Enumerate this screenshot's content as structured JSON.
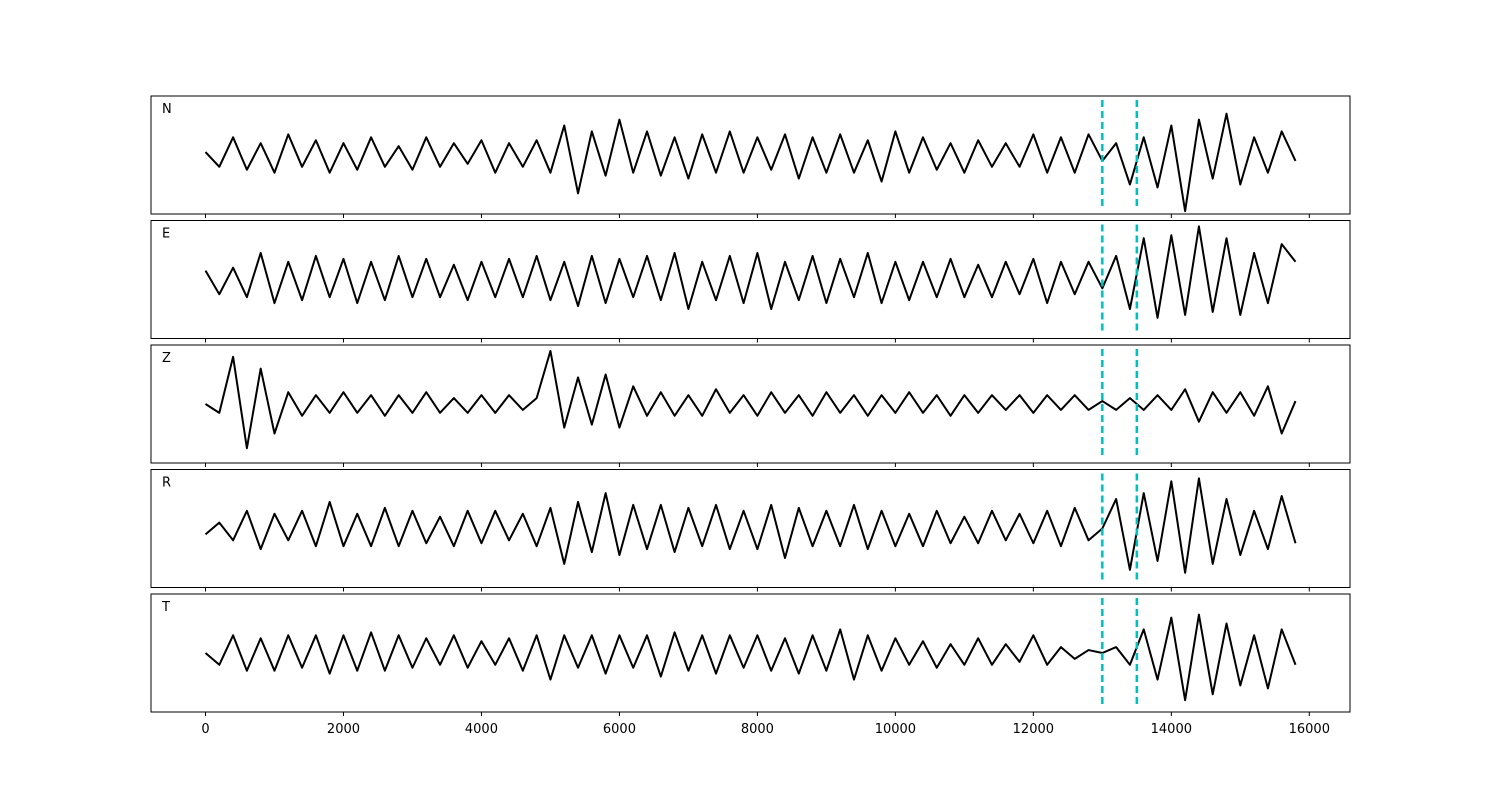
{
  "chart_data": [
    {
      "type": "line",
      "label": "N",
      "color": "#000000",
      "vline_color": "#00bfbf",
      "vlines": [
        13000,
        13500
      ],
      "xlim": [
        -790,
        16590
      ],
      "ylim": [
        -1,
        1
      ],
      "xticks": [
        0,
        2000,
        4000,
        6000,
        8000,
        10000,
        12000,
        14000,
        16000
      ],
      "x": [
        0,
        200,
        400,
        600,
        800,
        1000,
        1200,
        1400,
        1600,
        1800,
        2000,
        2200,
        2400,
        2600,
        2800,
        3000,
        3200,
        3400,
        3600,
        3800,
        4000,
        4200,
        4400,
        4600,
        4800,
        5000,
        5200,
        5400,
        5600,
        5800,
        6000,
        6200,
        6400,
        6600,
        6800,
        7000,
        7200,
        7400,
        7600,
        7800,
        8000,
        8200,
        8400,
        8600,
        8800,
        9000,
        9200,
        9400,
        9600,
        9800,
        10000,
        10200,
        10400,
        10600,
        10800,
        11000,
        11200,
        11400,
        11600,
        11800,
        12000,
        12200,
        12400,
        12600,
        12800,
        13000,
        13200,
        13400,
        13600,
        13800,
        14000,
        14200,
        14400,
        14600,
        14800,
        15000,
        15200,
        15400,
        15600,
        15800
      ],
      "values": [
        0.05,
        -0.2,
        0.3,
        -0.25,
        0.2,
        -0.3,
        0.35,
        -0.2,
        0.25,
        -0.3,
        0.2,
        -0.25,
        0.3,
        -0.2,
        0.15,
        -0.25,
        0.3,
        -0.2,
        0.2,
        -0.15,
        0.25,
        -0.3,
        0.2,
        -0.2,
        0.25,
        -0.3,
        0.5,
        -0.65,
        0.4,
        -0.35,
        0.6,
        -0.3,
        0.4,
        -0.35,
        0.3,
        -0.4,
        0.35,
        -0.3,
        0.4,
        -0.3,
        0.3,
        -0.25,
        0.35,
        -0.4,
        0.3,
        -0.3,
        0.35,
        -0.3,
        0.25,
        -0.45,
        0.4,
        -0.3,
        0.3,
        -0.25,
        0.2,
        -0.3,
        0.25,
        -0.2,
        0.2,
        -0.2,
        0.35,
        -0.3,
        0.3,
        -0.3,
        0.35,
        -0.1,
        0.2,
        -0.5,
        0.3,
        -0.55,
        0.5,
        -0.95,
        0.6,
        -0.4,
        0.7,
        -0.5,
        0.3,
        -0.3,
        0.4,
        -0.1
      ]
    },
    {
      "type": "line",
      "label": "E",
      "color": "#000000",
      "vline_color": "#00bfbf",
      "vlines": [
        13000,
        13500
      ],
      "xlim": [
        -790,
        16590
      ],
      "ylim": [
        -1,
        1
      ],
      "xticks": [
        0,
        2000,
        4000,
        6000,
        8000,
        10000,
        12000,
        14000,
        16000
      ],
      "x": [
        0,
        200,
        400,
        600,
        800,
        1000,
        1200,
        1400,
        1600,
        1800,
        2000,
        2200,
        2400,
        2600,
        2800,
        3000,
        3200,
        3400,
        3600,
        3800,
        4000,
        4200,
        4400,
        4600,
        4800,
        5000,
        5200,
        5400,
        5600,
        5800,
        6000,
        6200,
        6400,
        6600,
        6800,
        7000,
        7200,
        7400,
        7600,
        7800,
        8000,
        8200,
        8400,
        8600,
        8800,
        9000,
        9200,
        9400,
        9600,
        9800,
        10000,
        10200,
        10400,
        10600,
        10800,
        11000,
        11200,
        11400,
        11600,
        11800,
        12000,
        12200,
        12400,
        12600,
        12800,
        13000,
        13200,
        13400,
        13600,
        13800,
        14000,
        14200,
        14400,
        14600,
        14800,
        15000,
        15200,
        15400,
        15600,
        15800
      ],
      "values": [
        0.15,
        -0.25,
        0.2,
        -0.3,
        0.45,
        -0.4,
        0.3,
        -0.35,
        0.4,
        -0.3,
        0.35,
        -0.4,
        0.3,
        -0.35,
        0.4,
        -0.3,
        0.35,
        -0.3,
        0.25,
        -0.35,
        0.3,
        -0.3,
        0.35,
        -0.3,
        0.4,
        -0.35,
        0.3,
        -0.45,
        0.4,
        -0.4,
        0.35,
        -0.3,
        0.4,
        -0.35,
        0.45,
        -0.5,
        0.3,
        -0.35,
        0.4,
        -0.4,
        0.45,
        -0.5,
        0.3,
        -0.35,
        0.4,
        -0.4,
        0.35,
        -0.3,
        0.45,
        -0.4,
        0.3,
        -0.35,
        0.3,
        -0.3,
        0.35,
        -0.3,
        0.25,
        -0.3,
        0.3,
        -0.25,
        0.35,
        -0.4,
        0.3,
        -0.25,
        0.3,
        -0.15,
        0.4,
        -0.5,
        0.7,
        -0.65,
        0.75,
        -0.6,
        0.9,
        -0.55,
        0.7,
        -0.6,
        0.45,
        -0.4,
        0.6,
        0.3
      ]
    },
    {
      "type": "line",
      "label": "Z",
      "color": "#000000",
      "vline_color": "#00bfbf",
      "vlines": [
        13000,
        13500
      ],
      "xlim": [
        -790,
        16590
      ],
      "ylim": [
        -1,
        1
      ],
      "xticks": [
        0,
        2000,
        4000,
        6000,
        8000,
        10000,
        12000,
        14000,
        16000
      ],
      "x": [
        0,
        200,
        400,
        600,
        800,
        1000,
        1200,
        1400,
        1600,
        1800,
        2000,
        2200,
        2400,
        2600,
        2800,
        3000,
        3200,
        3400,
        3600,
        3800,
        4000,
        4200,
        4400,
        4600,
        4800,
        5000,
        5200,
        5400,
        5600,
        5800,
        6000,
        6200,
        6400,
        6600,
        6800,
        7000,
        7200,
        7400,
        7600,
        7800,
        8000,
        8200,
        8400,
        8600,
        8800,
        9000,
        9200,
        9400,
        9600,
        9800,
        10000,
        10200,
        10400,
        10600,
        10800,
        11000,
        11200,
        11400,
        11600,
        11800,
        12000,
        12200,
        12400,
        12600,
        12800,
        13000,
        13200,
        13400,
        13600,
        13800,
        14000,
        14200,
        14400,
        14600,
        14800,
        15000,
        15200,
        15400,
        15600,
        15800
      ],
      "values": [
        0.0,
        -0.15,
        0.8,
        -0.75,
        0.6,
        -0.5,
        0.2,
        -0.2,
        0.15,
        -0.15,
        0.2,
        -0.15,
        0.15,
        -0.2,
        0.15,
        -0.15,
        0.2,
        -0.15,
        0.1,
        -0.15,
        0.15,
        -0.15,
        0.15,
        -0.1,
        0.1,
        0.9,
        -0.4,
        0.45,
        -0.35,
        0.5,
        -0.4,
        0.3,
        -0.2,
        0.2,
        -0.2,
        0.15,
        -0.2,
        0.25,
        -0.15,
        0.15,
        -0.2,
        0.2,
        -0.15,
        0.15,
        -0.2,
        0.2,
        -0.15,
        0.15,
        -0.2,
        0.15,
        -0.15,
        0.2,
        -0.15,
        0.15,
        -0.2,
        0.15,
        -0.15,
        0.15,
        -0.1,
        0.15,
        -0.15,
        0.15,
        -0.1,
        0.15,
        -0.1,
        0.05,
        -0.1,
        0.1,
        -0.1,
        0.15,
        -0.1,
        0.25,
        -0.3,
        0.2,
        -0.15,
        0.2,
        -0.2,
        0.3,
        -0.5,
        0.05
      ]
    },
    {
      "type": "line",
      "label": "R",
      "color": "#000000",
      "vline_color": "#00bfbf",
      "vlines": [
        13000,
        13500
      ],
      "xlim": [
        -790,
        16590
      ],
      "ylim": [
        -1,
        1
      ],
      "xticks": [
        0,
        2000,
        4000,
        6000,
        8000,
        10000,
        12000,
        14000,
        16000
      ],
      "x": [
        0,
        200,
        400,
        600,
        800,
        1000,
        1200,
        1400,
        1600,
        1800,
        2000,
        2200,
        2400,
        2600,
        2800,
        3000,
        3200,
        3400,
        3600,
        3800,
        4000,
        4200,
        4400,
        4600,
        4800,
        5000,
        5200,
        5400,
        5600,
        5800,
        6000,
        6200,
        6400,
        6600,
        6800,
        7000,
        7200,
        7400,
        7600,
        7800,
        8000,
        8200,
        8400,
        8600,
        8800,
        9000,
        9200,
        9400,
        9600,
        9800,
        10000,
        10200,
        10400,
        10600,
        10800,
        11000,
        11200,
        11400,
        11600,
        11800,
        12000,
        12200,
        12400,
        12600,
        12800,
        13000,
        13200,
        13400,
        13600,
        13800,
        14000,
        14200,
        14400,
        14600,
        14800,
        15000,
        15200,
        15400,
        15600,
        15800
      ],
      "values": [
        -0.1,
        0.1,
        -0.2,
        0.3,
        -0.35,
        0.25,
        -0.2,
        0.3,
        -0.3,
        0.45,
        -0.3,
        0.25,
        -0.3,
        0.35,
        -0.3,
        0.3,
        -0.25,
        0.2,
        -0.3,
        0.3,
        -0.25,
        0.3,
        -0.2,
        0.25,
        -0.3,
        0.35,
        -0.6,
        0.45,
        -0.4,
        0.6,
        -0.45,
        0.4,
        -0.35,
        0.4,
        -0.4,
        0.35,
        -0.3,
        0.4,
        -0.35,
        0.3,
        -0.35,
        0.4,
        -0.5,
        0.35,
        -0.3,
        0.3,
        -0.3,
        0.4,
        -0.35,
        0.3,
        -0.3,
        0.25,
        -0.3,
        0.3,
        -0.25,
        0.2,
        -0.25,
        0.3,
        -0.2,
        0.25,
        -0.25,
        0.3,
        -0.3,
        0.35,
        -0.2,
        0.0,
        0.5,
        -0.7,
        0.6,
        -0.55,
        0.8,
        -0.75,
        0.85,
        -0.6,
        0.5,
        -0.45,
        0.3,
        -0.35,
        0.55,
        -0.25
      ]
    },
    {
      "type": "line",
      "label": "T",
      "color": "#000000",
      "vline_color": "#00bfbf",
      "vlines": [
        13000,
        13500
      ],
      "xlim": [
        -790,
        16590
      ],
      "ylim": [
        -1,
        1
      ],
      "xticks": [
        0,
        2000,
        4000,
        6000,
        8000,
        10000,
        12000,
        14000,
        16000
      ],
      "x": [
        0,
        200,
        400,
        600,
        800,
        1000,
        1200,
        1400,
        1600,
        1800,
        2000,
        2200,
        2400,
        2600,
        2800,
        3000,
        3200,
        3400,
        3600,
        3800,
        4000,
        4200,
        4400,
        4600,
        4800,
        5000,
        5200,
        5400,
        5600,
        5800,
        6000,
        6200,
        6400,
        6600,
        6800,
        7000,
        7200,
        7400,
        7600,
        7800,
        8000,
        8200,
        8400,
        8600,
        8800,
        9000,
        9200,
        9400,
        9600,
        9800,
        10000,
        10200,
        10400,
        10600,
        10800,
        11000,
        11200,
        11400,
        11600,
        11800,
        12000,
        12200,
        12400,
        12600,
        12800,
        13000,
        13200,
        13400,
        13600,
        13800,
        14000,
        14200,
        14400,
        14600,
        14800,
        15000,
        15200,
        15400,
        15600,
        15800
      ],
      "values": [
        0.0,
        -0.2,
        0.3,
        -0.3,
        0.25,
        -0.3,
        0.3,
        -0.25,
        0.3,
        -0.35,
        0.3,
        -0.3,
        0.35,
        -0.3,
        0.3,
        -0.25,
        0.25,
        -0.2,
        0.3,
        -0.25,
        0.2,
        -0.2,
        0.25,
        -0.3,
        0.3,
        -0.45,
        0.3,
        -0.25,
        0.3,
        -0.35,
        0.3,
        -0.25,
        0.3,
        -0.4,
        0.35,
        -0.3,
        0.3,
        -0.35,
        0.3,
        -0.25,
        0.3,
        -0.3,
        0.25,
        -0.35,
        0.3,
        -0.3,
        0.4,
        -0.45,
        0.3,
        -0.3,
        0.25,
        -0.2,
        0.2,
        -0.25,
        0.15,
        -0.2,
        0.25,
        -0.2,
        0.15,
        -0.15,
        0.3,
        -0.2,
        0.1,
        -0.1,
        0.05,
        0.0,
        0.1,
        -0.2,
        0.4,
        -0.45,
        0.6,
        -0.8,
        0.65,
        -0.7,
        0.5,
        -0.55,
        0.3,
        -0.6,
        0.4,
        -0.2
      ]
    }
  ]
}
